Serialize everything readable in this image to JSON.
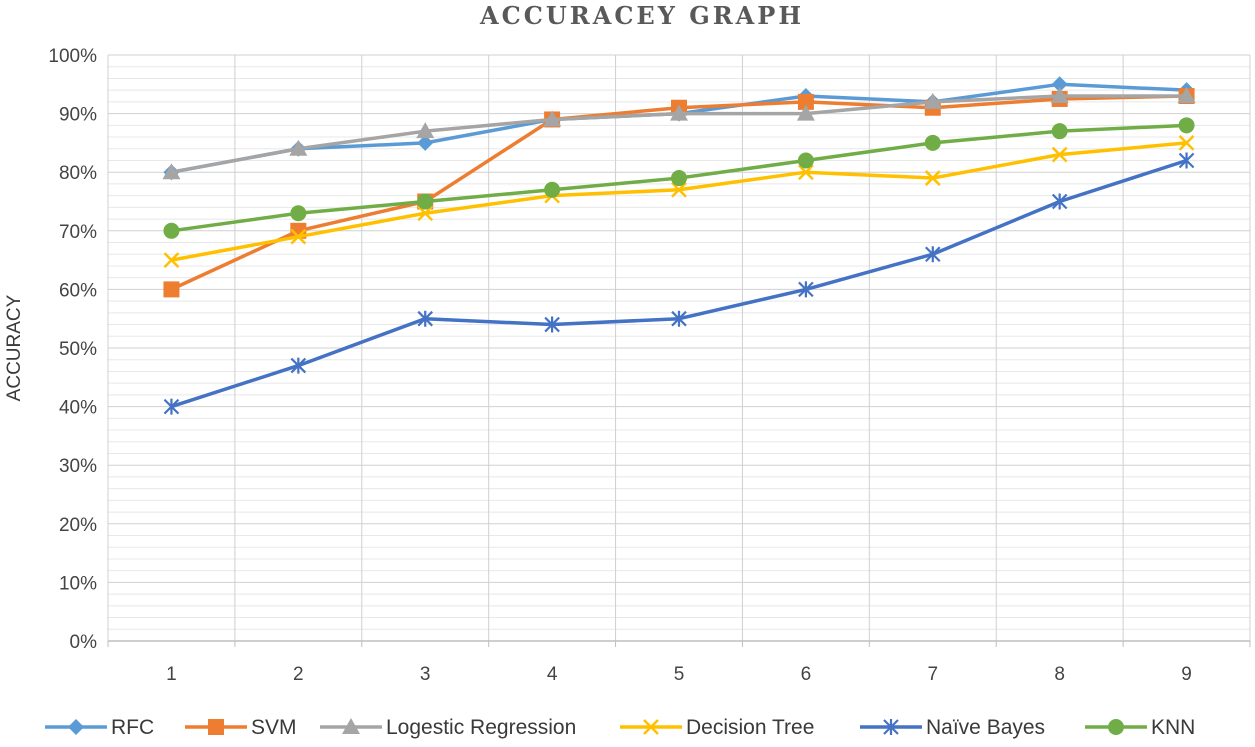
{
  "chart_data": {
    "type": "line",
    "title": "ACCURACEY GRAPH",
    "xlabel": "",
    "ylabel": "ACCURACY",
    "categories": [
      "1",
      "2",
      "3",
      "4",
      "5",
      "6",
      "7",
      "8",
      "9"
    ],
    "yticks": [
      "0%",
      "10%",
      "20%",
      "30%",
      "40%",
      "50%",
      "60%",
      "70%",
      "80%",
      "90%",
      "100%"
    ],
    "ylim": [
      0,
      100
    ],
    "grid": true,
    "legend_position": "bottom",
    "series": [
      {
        "name": "RFC",
        "color": "#5B9BD5",
        "marker": "diamond",
        "values": [
          80,
          84,
          85,
          89,
          90,
          93,
          92,
          95,
          94
        ]
      },
      {
        "name": "SVM",
        "color": "#ED7D31",
        "marker": "square",
        "values": [
          60,
          70,
          75,
          89,
          91,
          92,
          91,
          92.5,
          93
        ]
      },
      {
        "name": "Logestic Regression",
        "color": "#A5A5A5",
        "marker": "triangle",
        "values": [
          80,
          84,
          87,
          89,
          90,
          90,
          92,
          93,
          93
        ]
      },
      {
        "name": "Decision Tree",
        "color": "#FFC000",
        "marker": "x",
        "values": [
          65,
          69,
          73,
          76,
          77,
          80,
          79,
          83,
          85
        ]
      },
      {
        "name": "Naïve Bayes",
        "color": "#4472C4",
        "marker": "star",
        "values": [
          40,
          47,
          55,
          54,
          55,
          60,
          66,
          75,
          82
        ]
      },
      {
        "name": "KNN",
        "color": "#70AD47",
        "marker": "circle",
        "values": [
          70,
          73,
          75,
          77,
          79,
          82,
          85,
          87,
          88
        ]
      }
    ]
  }
}
